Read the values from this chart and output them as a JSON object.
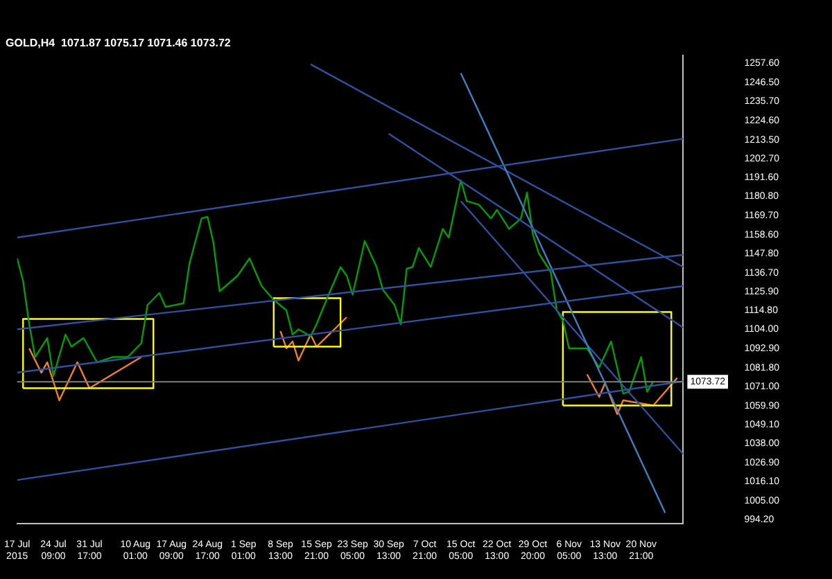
{
  "chart_data": {
    "type": "line",
    "title": "GOLD,H4  1071.87 1075.17 1071.46 1073.72",
    "xlim": [
      "2015-07-17T00:00",
      "2015-11-29T10:00"
    ],
    "xticks": [
      {
        "value": "2015-07-17",
        "label": "17 Jul 2015"
      },
      {
        "value": "2015-07-24T09:00",
        "label": "24 Jul 09:00"
      },
      {
        "value": "2015-07-31T17:00",
        "label": "31 Jul 17:00"
      },
      {
        "value": "2015-08-10T01:00",
        "label": "10 Aug 01:00"
      },
      {
        "value": "2015-08-17T09:00",
        "label": "17 Aug 09:00"
      },
      {
        "value": "2015-08-24T17:00",
        "label": "24 Aug 17:00"
      },
      {
        "value": "2015-09-01T01:00",
        "label": "1 Sep 01:00"
      },
      {
        "value": "2015-09-08T13:00",
        "label": "8 Sep 13:00"
      },
      {
        "value": "2015-09-15T21:00",
        "label": "15 Sep 21:00"
      },
      {
        "value": "2015-09-23T05:00",
        "label": "23 Sep 05:00"
      },
      {
        "value": "2015-09-30T13:00",
        "label": "30 Sep 13:00"
      },
      {
        "value": "2015-10-07T21:00",
        "label": "7 Oct 21:00"
      },
      {
        "value": "2015-10-15T05:00",
        "label": "15 Oct 05:00"
      },
      {
        "value": "2015-10-22T13:00",
        "label": "22 Oct 13:00"
      },
      {
        "value": "2015-10-29T20:00",
        "label": "29 Oct 20:00"
      },
      {
        "value": "2015-11-06T05:00",
        "label": "6 Nov 05:00"
      },
      {
        "value": "2015-11-13T13:00",
        "label": "13 Nov 13:00"
      },
      {
        "value": "2015-11-20T21:00",
        "label": "20 Nov 21:00"
      }
    ],
    "ylim": [
      992,
      1262
    ],
    "yticks": [
      {
        "value": 994.2,
        "label": "994.20"
      },
      {
        "value": 1005,
        "label": "1005.00"
      },
      {
        "value": 1016.1,
        "label": "1016.10"
      },
      {
        "value": 1026.9,
        "label": "1026.90"
      },
      {
        "value": 1038,
        "label": "1038.00"
      },
      {
        "value": 1049.1,
        "label": "1049.10"
      },
      {
        "value": 1059.9,
        "label": "1059.90"
      },
      {
        "value": 1071,
        "label": "1071.00"
      },
      {
        "value": 1081.8,
        "label": "1081.80"
      },
      {
        "value": 1092.9,
        "label": "1092.90"
      },
      {
        "value": 1104,
        "label": "1104.00"
      },
      {
        "value": 1114.8,
        "label": "1114.80"
      },
      {
        "value": 1125.9,
        "label": "1125.90"
      },
      {
        "value": 1136.7,
        "label": "1136.70"
      },
      {
        "value": 1147.8,
        "label": "1147.80"
      },
      {
        "value": 1158.6,
        "label": "1158.60"
      },
      {
        "value": 1169.7,
        "label": "1169.70"
      },
      {
        "value": 1180.8,
        "label": "1180.80"
      },
      {
        "value": 1191.6,
        "label": "1191.60"
      },
      {
        "value": 1202.7,
        "label": "1202.70"
      },
      {
        "value": 1213.5,
        "label": "1213.50"
      },
      {
        "value": 1224.6,
        "label": "1224.60"
      },
      {
        "value": 1235.7,
        "label": "1235.70"
      },
      {
        "value": 1246.5,
        "label": "1246.50"
      },
      {
        "value": 1257.6,
        "label": "1257.60"
      }
    ],
    "ref_lines": [
      {
        "axis": "y",
        "value": 1073.72,
        "label": "1073.72",
        "color": "#808080"
      }
    ],
    "series": [
      {
        "color": "#3050a0",
        "x": [
          "2015-07-17T00:00",
          "2015-11-29T10:00"
        ],
        "values": [
          1157,
          1214
        ]
      },
      {
        "color": "#3050a0",
        "x": [
          "2015-07-17T00:00",
          "2015-11-29T10:00"
        ],
        "values": [
          1104,
          1147
        ]
      },
      {
        "color": "#3050a0",
        "x": [
          "2015-07-17T00:00",
          "2015-11-29T10:00"
        ],
        "values": [
          1079,
          1129
        ]
      },
      {
        "color": "#3050a0",
        "x": [
          "2015-07-17T00:00",
          "2015-11-29T10:00"
        ],
        "values": [
          1017,
          1074
        ]
      },
      {
        "color": "#3050a0",
        "x": [
          "2015-09-30T13:00",
          "2015-11-29T10:00"
        ],
        "values": [
          1217,
          1105
        ]
      },
      {
        "color": "#4080c0",
        "x": [
          "2015-10-15T05:00",
          "2015-11-25T18:00"
        ],
        "values": [
          1252,
          998
        ]
      },
      {
        "color": "#3050a0",
        "x": [
          "2015-10-15T05:00",
          "2015-11-29T10:00"
        ],
        "values": [
          1178,
          1032
        ]
      },
      {
        "color": "#3050a0",
        "x": [
          "2015-09-14T16:00",
          "2015-11-29T10:00"
        ],
        "values": [
          1257,
          1140
        ]
      },
      {
        "color": "#00a000",
        "x": [
          "2015-07-17T00:00",
          "2015-07-18T05:00",
          "2015-07-19T11:00",
          "2015-07-20T16:00",
          "2015-07-23T03:00",
          "2015-07-24T09:00",
          "2015-07-26T20:00",
          "2015-07-28T01:00",
          "2015-07-30T12:00",
          "2015-08-02T06:00",
          "2015-08-05T09:00",
          "2015-08-08T12:00",
          "2015-08-11T06:00",
          "2015-08-12T12:00",
          "2015-08-14T22:00",
          "2015-08-16T04:00",
          "2015-08-19T20:00",
          "2015-08-21T01:00",
          "2015-08-23T12:00",
          "2015-08-24T17:00",
          "2015-08-25T22:00",
          "2015-08-27T04:00",
          "2015-08-30T20:00",
          "2015-09-02T06:00",
          "2015-09-04T17:00",
          "2015-09-07T04:00",
          "2015-09-09T18:00",
          "2015-09-11T00:00",
          "2015-09-12T05:00",
          "2015-09-14T16:00",
          "2015-09-15T21:00",
          "2015-09-18T08:00",
          "2015-09-20T18:00",
          "2015-09-22T00:00",
          "2015-09-23T05:00",
          "2015-09-25T16:00",
          "2015-09-28T02:00",
          "2015-09-29T08:00",
          "2015-10-01T18:00",
          "2015-10-03T00:00",
          "2015-10-04T05:00",
          "2015-10-05T10:00",
          "2015-10-06T16:00",
          "2015-10-09T02:00",
          "2015-10-11T13:00",
          "2015-10-12T18:00",
          "2015-10-15T05:00",
          "2015-10-16T10:00",
          "2015-10-18T21:00",
          "2015-10-21T08:00",
          "2015-10-22T13:00",
          "2015-10-25T00:00",
          "2015-10-27T10:00",
          "2015-10-28T16:00",
          "2015-10-29T20:00",
          "2015-10-31T01:00",
          "2015-11-02T12:00",
          "2015-11-03T17:00",
          "2015-11-04T23:00",
          "2015-11-06T05:00",
          "2015-11-09T21:00",
          "2015-11-12T08:00",
          "2015-11-14T18:00",
          "2015-11-17T05:00",
          "2015-11-18T10:00",
          "2015-11-20T21:00",
          "2015-11-22T02:00",
          "2015-11-23T08:00"
        ],
        "values": [
          1145,
          1132,
          1107,
          1088,
          1099,
          1077,
          1101,
          1094,
          1099,
          1085,
          1088,
          1088,
          1096,
          1118,
          1125,
          1117,
          1119,
          1142,
          1168,
          1169,
          1154,
          1126,
          1135,
          1145,
          1129,
          1121,
          1115,
          1101,
          1104,
          1100,
          1107,
          1124,
          1140,
          1135,
          1124,
          1155,
          1140,
          1127,
          1118,
          1107,
          1139,
          1140,
          1151,
          1140,
          1162,
          1157,
          1190,
          1178,
          1176,
          1168,
          1173,
          1162,
          1168,
          1183,
          1159,
          1148,
          1137,
          1115,
          1109,
          1093,
          1093,
          1082,
          1097,
          1067,
          1068,
          1088,
          1068,
          1074
        ]
      },
      {
        "color": "#ffff00",
        "x": [
          "2015-07-18T05:00",
          "2015-07-18T05:00",
          "2015-08-13T17:00",
          "2015-08-13T17:00"
        ],
        "values": [
          1070,
          1110,
          1110,
          1070
        ]
      },
      {
        "color": "#ffff00",
        "x": [
          "2015-07-18T05:00",
          "2015-08-13T17:00"
        ],
        "values": [
          1070,
          1070
        ]
      },
      {
        "color": "#ffff00",
        "x": [
          "2015-09-07T04:00",
          "2015-09-07T04:00",
          "2015-09-20T18:00",
          "2015-09-20T18:00"
        ],
        "values": [
          1094,
          1122,
          1122,
          1094
        ]
      },
      {
        "color": "#ffff00",
        "x": [
          "2015-09-07T04:00",
          "2015-09-20T18:00"
        ],
        "values": [
          1094,
          1094
        ]
      },
      {
        "color": "#ffff00",
        "x": [
          "2015-11-04T23:00",
          "2015-11-04T23:00",
          "2015-11-27T00:00",
          "2015-11-27T00:00"
        ],
        "values": [
          1060,
          1114,
          1114,
          1060
        ]
      },
      {
        "color": "#ffff00",
        "x": [
          "2015-11-04T23:00",
          "2015-11-27T00:00"
        ],
        "values": [
          1060,
          1060
        ]
      },
      {
        "color": "#f08030",
        "x": [
          "2015-07-19T11:00",
          "2015-07-21T22:00",
          "2015-07-23T03:00",
          "2015-07-25T14:00",
          "2015-07-29T06:00",
          "2015-07-31T17:00",
          "2015-08-11T06:00"
        ],
        "values": [
          1093,
          1079,
          1085,
          1063,
          1085,
          1070,
          1088
        ]
      },
      {
        "color": "#f08030",
        "x": [
          "2015-09-08T13:00",
          "2015-09-09T18:00",
          "2015-09-11T00:00",
          "2015-09-12T05:00",
          "2015-09-14T16:00",
          "2015-09-15T21:00",
          "2015-09-22T00:00"
        ],
        "values": [
          1103,
          1093,
          1097,
          1086,
          1101,
          1094,
          1111
        ]
      },
      {
        "color": "#f08030",
        "x": [
          "2015-11-09T21:00",
          "2015-11-12T08:00",
          "2015-11-13T13:00",
          "2015-11-16T00:00",
          "2015-11-17T05:00",
          "2015-11-23T08:00",
          "2015-11-28T05:00"
        ],
        "values": [
          1078,
          1065,
          1073,
          1055,
          1063,
          1060,
          1076
        ]
      }
    ]
  }
}
